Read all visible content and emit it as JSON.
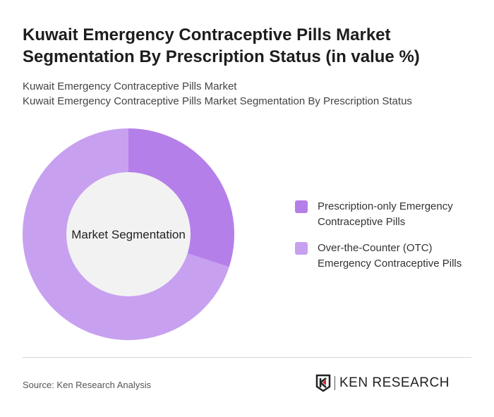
{
  "title": "Kuwait Emergency Contraceptive Pills Market Segmentation By Prescription Status (in value %)",
  "subtitle_1": "Kuwait Emergency Contraceptive Pills Market",
  "subtitle_2": "Kuwait Emergency Contraceptive Pills Market Segmentation By Prescription Status",
  "source": "Source: Ken Research Analysis",
  "logo_text": "KEN RESEARCH",
  "chart_data": {
    "type": "pie",
    "variant": "donut",
    "center_label": "Market Segmentation",
    "categories": [
      "Prescription-only Emergency Contraceptive Pills",
      "Over-the-Counter (OTC) Emergency Contraceptive Pills"
    ],
    "values": [
      30,
      70
    ],
    "colors": [
      "#b57fea",
      "#c8a0f0"
    ],
    "legend_position": "right"
  }
}
